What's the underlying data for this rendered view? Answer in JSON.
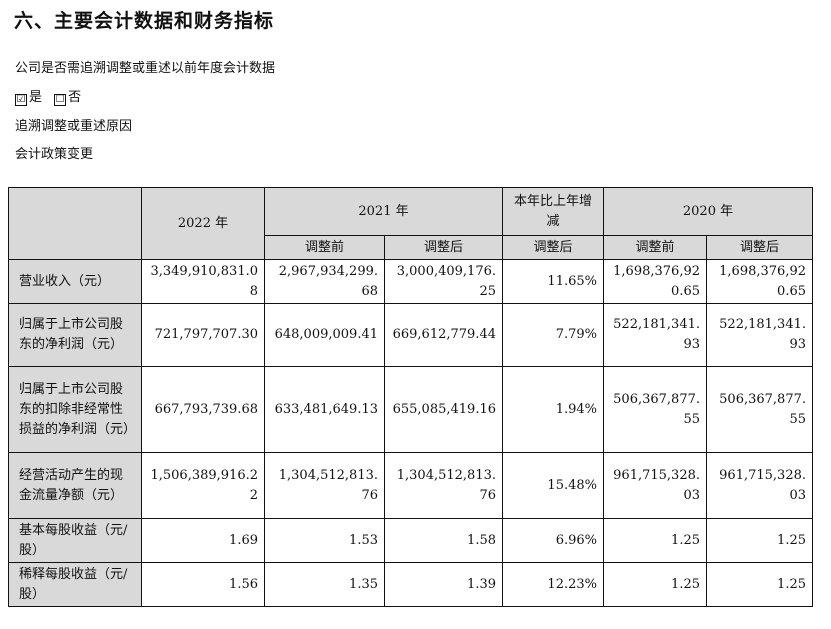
{
  "heading": "六、主要会计数据和财务指标",
  "question": "公司是否需追溯调整或重述以前年度会计数据",
  "options": [
    {
      "checked": true,
      "mark": "☑",
      "label": "是"
    },
    {
      "checked": false,
      "mark": "☐",
      "label": "否"
    }
  ],
  "reason_label": "追溯调整或重述原因",
  "reason": "会计政策变更",
  "table": {
    "headers": {
      "y2022": "2022 年",
      "y2021": "2021 年",
      "change": "本年比上年增减",
      "y2020": "2020 年",
      "before": "调整前",
      "after": "调整后",
      "change_sub": "调整后"
    },
    "rows": [
      {
        "label": "营业收入（元）",
        "v2022": "3,349,910,831.08",
        "v2021_before": "2,967,934,299.68",
        "v2021_after": "3,000,409,176.25",
        "change": "11.65%",
        "v2020_before": "1,698,376,920.65",
        "v2020_after": "1,698,376,920.65"
      },
      {
        "label": "归属于上市公司股东的净利润（元）",
        "v2022": "721,797,707.30",
        "v2021_before": "648,009,009.41",
        "v2021_after": "669,612,779.44",
        "change": "7.79%",
        "v2020_before": "522,181,341.93",
        "v2020_after": "522,181,341.93"
      },
      {
        "label": "归属于上市公司股东的扣除非经常性损益的净利润（元）",
        "v2022": "667,793,739.68",
        "v2021_before": "633,481,649.13",
        "v2021_after": "655,085,419.16",
        "change": "1.94%",
        "v2020_before": "506,367,877.55",
        "v2020_after": "506,367,877.55"
      },
      {
        "label": "经营活动产生的现金流量净额（元）",
        "v2022": "1,506,389,916.22",
        "v2021_before": "1,304,512,813.76",
        "v2021_after": "1,304,512,813.76",
        "change": "15.48%",
        "v2020_before": "961,715,328.03",
        "v2020_after": "961,715,328.03"
      },
      {
        "label": "基本每股收益（元/股）",
        "v2022": "1.69",
        "v2021_before": "1.53",
        "v2021_after": "1.58",
        "change": "6.96%",
        "v2020_before": "1.25",
        "v2020_after": "1.25"
      },
      {
        "label": "稀释每股收益（元/股）",
        "v2022": "1.56",
        "v2021_before": "1.35",
        "v2021_after": "1.39",
        "change": "12.23%",
        "v2020_before": "1.25",
        "v2020_after": "1.25"
      }
    ]
  }
}
